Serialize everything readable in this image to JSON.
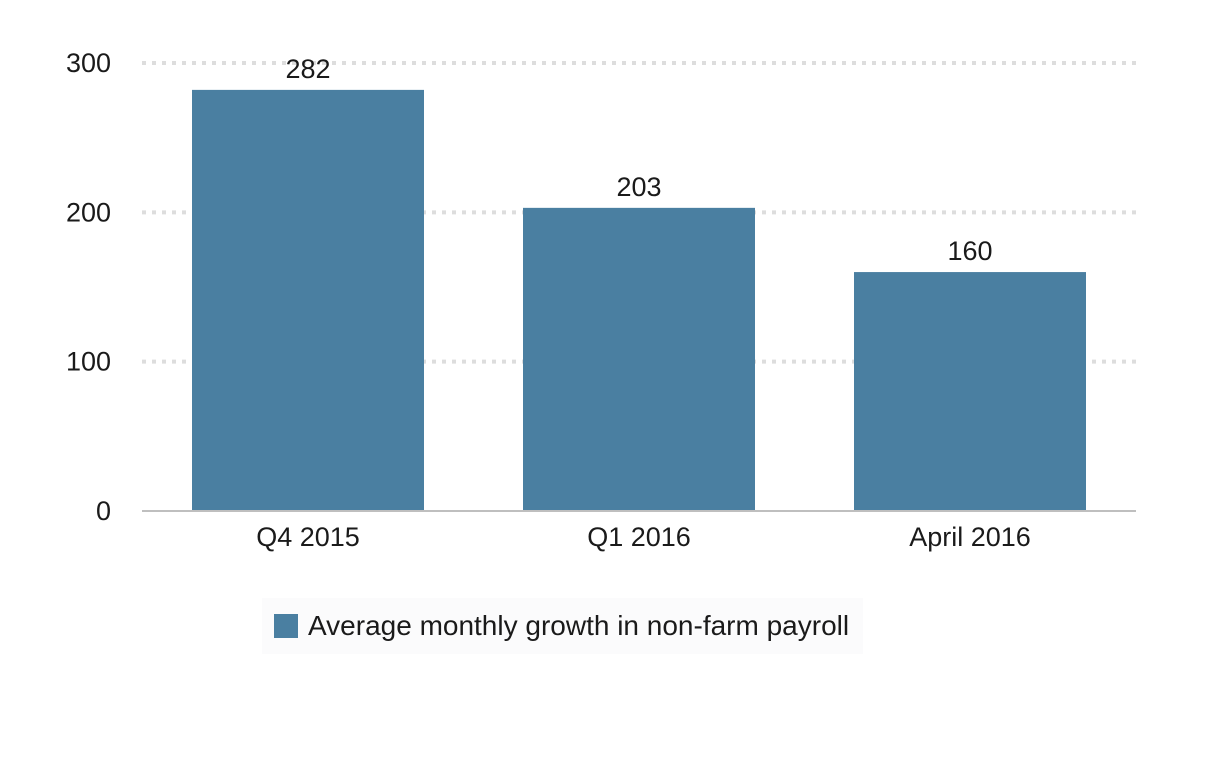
{
  "colors": {
    "bar": "#4a7fa1",
    "gridline": "#dddddd",
    "baseline": "#bfbfbf",
    "text": "#1a1a1a"
  },
  "chart_data": {
    "type": "bar",
    "title": "",
    "xlabel": "",
    "ylabel": "",
    "categories": [
      "Q4 2015",
      "Q1 2016",
      "April 2016"
    ],
    "series": [
      {
        "name": "Average monthly growth in non-farm payroll",
        "values": [
          282,
          203,
          160
        ]
      }
    ],
    "data_labels": [
      "282",
      "203",
      "160"
    ],
    "ylim": [
      0,
      300
    ],
    "yticks": [
      0,
      100,
      200,
      300
    ],
    "ytick_labels": [
      "0",
      "100",
      "200",
      "300"
    ],
    "grid": true,
    "grid_style": "dotted",
    "legend_position": "bottom"
  }
}
